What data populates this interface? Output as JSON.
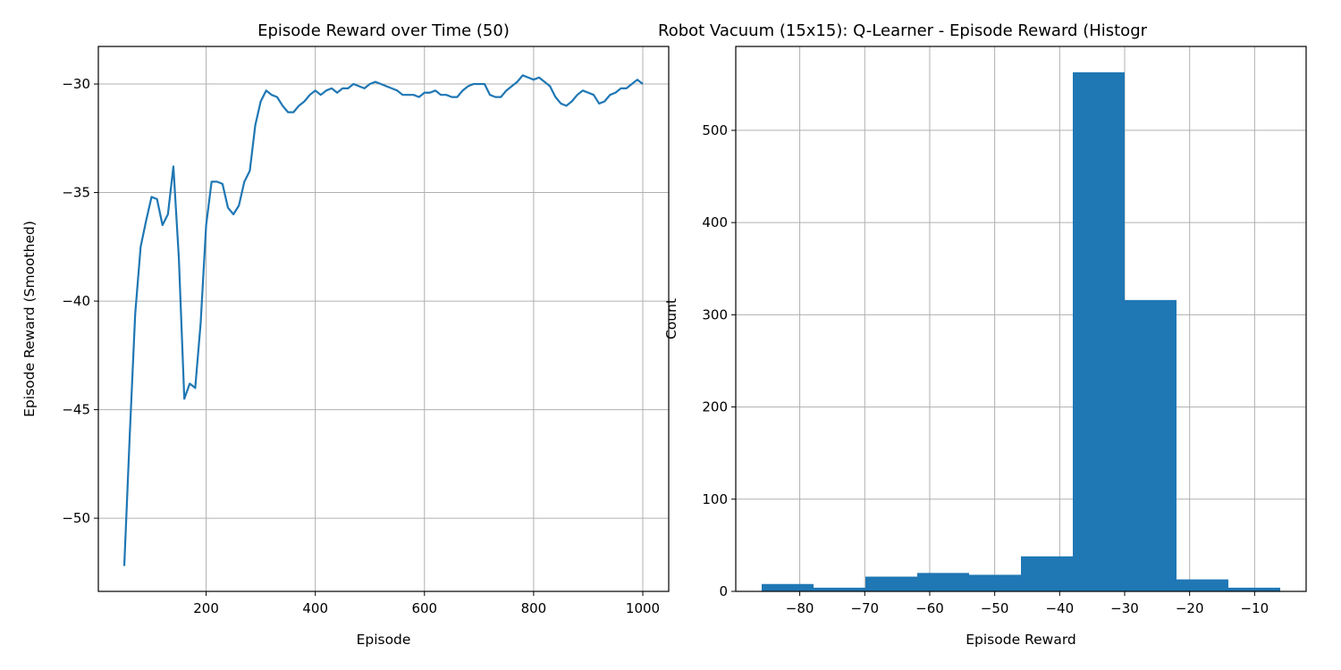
{
  "chart_data": [
    {
      "type": "line",
      "title": "Episode Reward over Time (50)",
      "xlabel": "Episode",
      "ylabel": "Episode Reward (Smoothed)",
      "x": [
        50,
        60,
        70,
        80,
        90,
        100,
        110,
        120,
        130,
        140,
        150,
        160,
        170,
        180,
        190,
        200,
        210,
        220,
        230,
        240,
        250,
        260,
        270,
        280,
        290,
        300,
        310,
        320,
        330,
        340,
        350,
        360,
        370,
        380,
        390,
        400,
        410,
        420,
        430,
        440,
        450,
        460,
        470,
        480,
        490,
        500,
        510,
        520,
        530,
        540,
        550,
        560,
        570,
        580,
        590,
        600,
        610,
        620,
        630,
        640,
        650,
        660,
        670,
        680,
        690,
        700,
        710,
        720,
        730,
        740,
        750,
        760,
        770,
        780,
        790,
        800,
        810,
        820,
        830,
        840,
        850,
        860,
        870,
        880,
        890,
        900,
        910,
        920,
        930,
        940,
        950,
        960,
        970,
        980,
        990,
        1000
      ],
      "values": [
        -52.2,
        -46.2,
        -40.6,
        -37.5,
        -36.3,
        -35.2,
        -35.3,
        -36.5,
        -36.0,
        -33.8,
        -38.0,
        -44.5,
        -43.8,
        -44.0,
        -41.0,
        -36.5,
        -34.5,
        -34.5,
        -34.6,
        -35.7,
        -36.0,
        -35.6,
        -34.5,
        -34.0,
        -31.9,
        -30.8,
        -30.3,
        -30.5,
        -30.6,
        -31.0,
        -31.3,
        -31.3,
        -31.0,
        -30.8,
        -30.5,
        -30.3,
        -30.5,
        -30.3,
        -30.2,
        -30.4,
        -30.2,
        -30.2,
        -30.0,
        -30.1,
        -30.2,
        -30.0,
        -29.9,
        -30.0,
        -30.1,
        -30.2,
        -30.3,
        -30.5,
        -30.5,
        -30.5,
        -30.6,
        -30.4,
        -30.4,
        -30.3,
        -30.5,
        -30.5,
        -30.6,
        -30.6,
        -30.3,
        -30.1,
        -30.0,
        -30.0,
        -30.0,
        -30.5,
        -30.6,
        -30.6,
        -30.3,
        -30.1,
        -29.9,
        -29.6,
        -29.7,
        -29.8,
        -29.7,
        -29.9,
        -30.1,
        -30.6,
        -30.9,
        -31.0,
        -30.8,
        -30.5,
        -30.3,
        -30.4,
        -30.5,
        -30.9,
        -30.8,
        -30.5,
        -30.4,
        -30.2,
        -30.2,
        -30.0,
        -29.8,
        -30.0
      ],
      "color": "#1f77b4",
      "grid": true,
      "xlim": [
        2.5,
        1047.5
      ],
      "xticks": [
        200,
        400,
        600,
        800,
        1000
      ],
      "ylim": [
        -53.37,
        -28.27
      ],
      "yticks": [
        {
          "value": -50,
          "label": "−50"
        },
        {
          "value": -45,
          "label": "−45"
        },
        {
          "value": -40,
          "label": "−40"
        },
        {
          "value": -35,
          "label": "−35"
        },
        {
          "value": -30,
          "label": "−30"
        }
      ]
    },
    {
      "type": "histogram",
      "title": "Robot Vacuum (15x15): Q-Learner - Episode Reward (Histogr",
      "xlabel": "Episode Reward",
      "ylabel": "Count",
      "bins": [
        -85.86,
        -77.88,
        -69.9,
        -61.92,
        -53.94,
        -45.96,
        -37.98,
        -30.0,
        -22.02,
        -14.04,
        -6.06
      ],
      "values": [
        8,
        4,
        16,
        20,
        18,
        38,
        563,
        316,
        13,
        4
      ],
      "color": "#1f77b4",
      "grid": true,
      "xlim": [
        -89.85,
        -2.07
      ],
      "xticks": [
        {
          "value": -80,
          "label": "−80"
        },
        {
          "value": -70,
          "label": "−70"
        },
        {
          "value": -60,
          "label": "−60"
        },
        {
          "value": -50,
          "label": "−50"
        },
        {
          "value": -40,
          "label": "−40"
        },
        {
          "value": -30,
          "label": "−30"
        },
        {
          "value": -20,
          "label": "−20"
        },
        {
          "value": -10,
          "label": "−10"
        }
      ],
      "ylim": [
        0,
        591
      ],
      "yticks": [
        0,
        100,
        200,
        300,
        400,
        500
      ]
    }
  ]
}
